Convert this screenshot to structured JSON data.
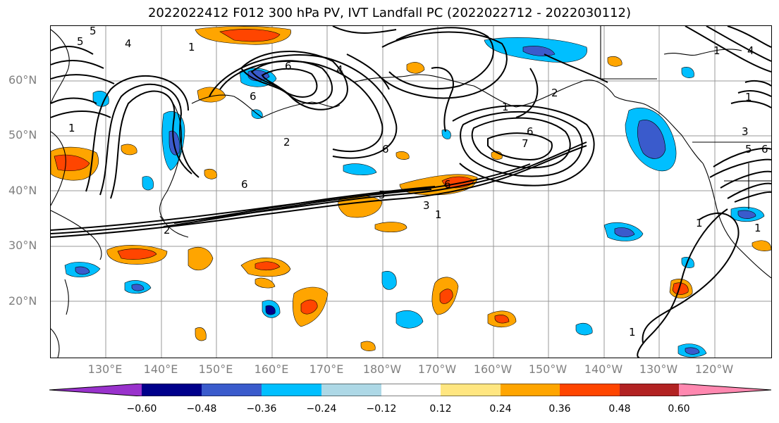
{
  "title": "2022022412 F012 300 hPa PV, IVT Landfall PC (2022022712 - 2022030112)",
  "lat_labels": [
    "60°N",
    "50°N",
    "40°N",
    "30°N",
    "20°N"
  ],
  "lon_labels": [
    "130°E",
    "140°E",
    "150°E",
    "160°E",
    "170°E",
    "180°W",
    "170°W",
    "160°W",
    "150°W",
    "140°W",
    "130°W",
    "120°W"
  ],
  "colorbar": {
    "colors": [
      "#9932cc",
      "#00008b",
      "#3a5bcc",
      "#00bfff",
      "#add8e6",
      "#ffffff",
      "#ffe680",
      "#ffa500",
      "#ff4500",
      "#b22222",
      "#ff88b0"
    ],
    "tick_labels": [
      "−0.60",
      "−0.48",
      "−0.36",
      "−0.24",
      "−0.12",
      "0.12",
      "0.24",
      "0.36",
      "0.48",
      "0.60"
    ]
  },
  "contour_labels": [
    "1",
    "5",
    "5",
    "4",
    "6",
    "6",
    "4",
    "2",
    "1",
    "1",
    "2",
    "6",
    "6",
    "7",
    "6",
    "6",
    "5",
    "3",
    "1",
    "2",
    "1",
    "1",
    "1",
    "5",
    "6",
    "1",
    "1",
    "3",
    "4"
  ]
}
